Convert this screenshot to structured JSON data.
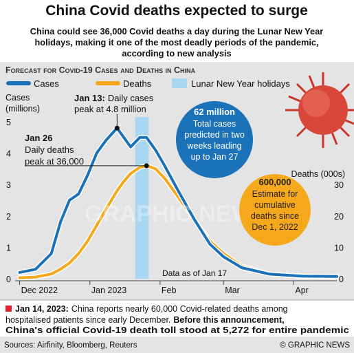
{
  "title": "China Covid deaths expected to surge",
  "subtitle": [
    "China could see 36,000 Covid deaths a day during the Lunar New Year",
    "holidays, making it one of the most deadly periods of the pandemic,",
    "according to new analysis"
  ],
  "chart_data": {
    "type": "line",
    "title": "Forecast for Covid-19 Cases and Deaths in China",
    "x": [
      0,
      7,
      14,
      18,
      22,
      26,
      30,
      34,
      38,
      43,
      46,
      49,
      53,
      56,
      60,
      64,
      70,
      77,
      84,
      90,
      98,
      110,
      125,
      140
    ],
    "xlim": [
      -2,
      140
    ],
    "xticks": [
      {
        "value": 0,
        "label": "Dec 2022"
      },
      {
        "value": 31,
        "label": "Jan 2023"
      },
      {
        "value": 62,
        "label": "Feb"
      },
      {
        "value": 90,
        "label": "Mar"
      },
      {
        "value": 121,
        "label": "Apr"
      }
    ],
    "ylabel": [
      "Cases",
      "(millions)"
    ],
    "ylim": [
      0,
      5
    ],
    "yticks": [
      0,
      1,
      2,
      3,
      4,
      5
    ],
    "y2label": "Deaths (000s)",
    "y2lim": [
      0,
      50
    ],
    "y2ticks": [
      0,
      10,
      20,
      30
    ],
    "grid": false,
    "series": [
      {
        "name": "Cases",
        "color": "#1b72b8",
        "values": [
          0.2,
          0.3,
          0.8,
          1.8,
          2.5,
          2.7,
          3.3,
          4.0,
          4.4,
          4.8,
          4.5,
          4.2,
          4.5,
          4.5,
          4.1,
          3.6,
          2.8,
          1.9,
          1.1,
          0.7,
          0.35,
          0.15,
          0.08,
          0.07
        ]
      },
      {
        "name": "Deaths",
        "color": "#f6a81c",
        "axis": "y2",
        "values": [
          0.3,
          0.5,
          1.5,
          3,
          5,
          8,
          12,
          17,
          22,
          28,
          31,
          33.5,
          35.5,
          36,
          35,
          32,
          26,
          19,
          12,
          8,
          4,
          1.5,
          0.7,
          0.5
        ]
      }
    ],
    "highlight": {
      "name": "Lunar New Year holidays",
      "color": "#a9d6f0",
      "x": [
        51,
        57
      ]
    },
    "annotations": [
      {
        "date": "Jan 13:",
        "text": [
          "Daily cases",
          "peak at 4.8 million"
        ]
      },
      {
        "date": "Jan 26",
        "text": [
          "Daily deaths",
          "peak at 36,000"
        ]
      },
      {
        "text": [
          "Data as of Jan 17"
        ]
      }
    ]
  },
  "callouts": [
    {
      "headline": "62 million",
      "lines": [
        "Total cases",
        "predicted in two",
        "weeks leading",
        "up to Jan 27"
      ],
      "color": "#1b72b8"
    },
    {
      "headline": "600,000",
      "lines": [
        "Estimate for",
        "cumulative",
        "deaths since",
        "Dec 1, 2022"
      ],
      "color": "#f6a81c"
    }
  ],
  "watermark": "GRAPHIC NEWS",
  "note": {
    "date": "Jan 14, 2023:",
    "text1": "China reports nearly 60,000 Covid-related deaths among",
    "text2": "hospitalised patients since early December.",
    "bold2": "Before this announcement,",
    "bold3": "China's official Covid-19 death toll stood at 5,272 for entire pandemic"
  },
  "source": "Sources: Airfinity, Bloomberg, Reuters",
  "credit": "© GRAPHIC NEWS"
}
